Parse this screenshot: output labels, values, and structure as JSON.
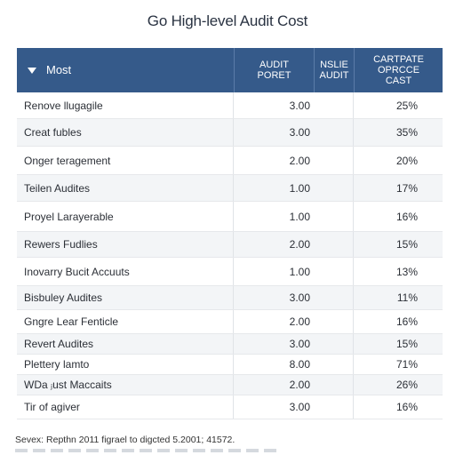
{
  "title": "Go High-level Audit Cost",
  "header": {
    "col1": "Most",
    "col2_line1": "AUDIT",
    "col2_line2": "PORET",
    "col3_line1": "NSLIE",
    "col3_line2": "AUDIT",
    "col4_line1": "CARTPATE",
    "col4_line2": "OPRCCE",
    "col4_line3": "CAST"
  },
  "rows": [
    {
      "name": "Renove llugagile",
      "audit": "3.00",
      "pct": "25%"
    },
    {
      "name": "Creat fubles",
      "audit": "3.00",
      "pct": "35%"
    },
    {
      "name": "Onger teragement",
      "audit": "2.00",
      "pct": "20%"
    },
    {
      "name": "Teilen Audites",
      "audit": "1.00",
      "pct": "17%"
    },
    {
      "name": "Proyel Larayerable",
      "audit": "1.00",
      "pct": "16%"
    },
    {
      "name": "Rewers Fudlies",
      "audit": "2.00",
      "pct": "15%"
    },
    {
      "name": "Inovarry Bucit Accuuts",
      "audit": "1.00",
      "pct": "13%"
    },
    {
      "name": "Bisbuley Audites",
      "audit": "3.00",
      "pct": "11%"
    },
    {
      "name": "Gngre Lear Fenticle",
      "audit": "2.00",
      "pct": "16%"
    },
    {
      "name": "Revert Audites",
      "audit": "3.00",
      "pct": "15%"
    },
    {
      "name": "Plettery lamto",
      "audit": "8.00",
      "pct": "71%"
    },
    {
      "name": "WDa ⱼust Maccaits",
      "audit": "2.00",
      "pct": "26%"
    },
    {
      "name": "Tir of agiver",
      "audit": "3.00",
      "pct": "16%"
    }
  ],
  "footnote": "Sevex: Repthn 2011 figrael to digcted 5.2001; 41572."
}
